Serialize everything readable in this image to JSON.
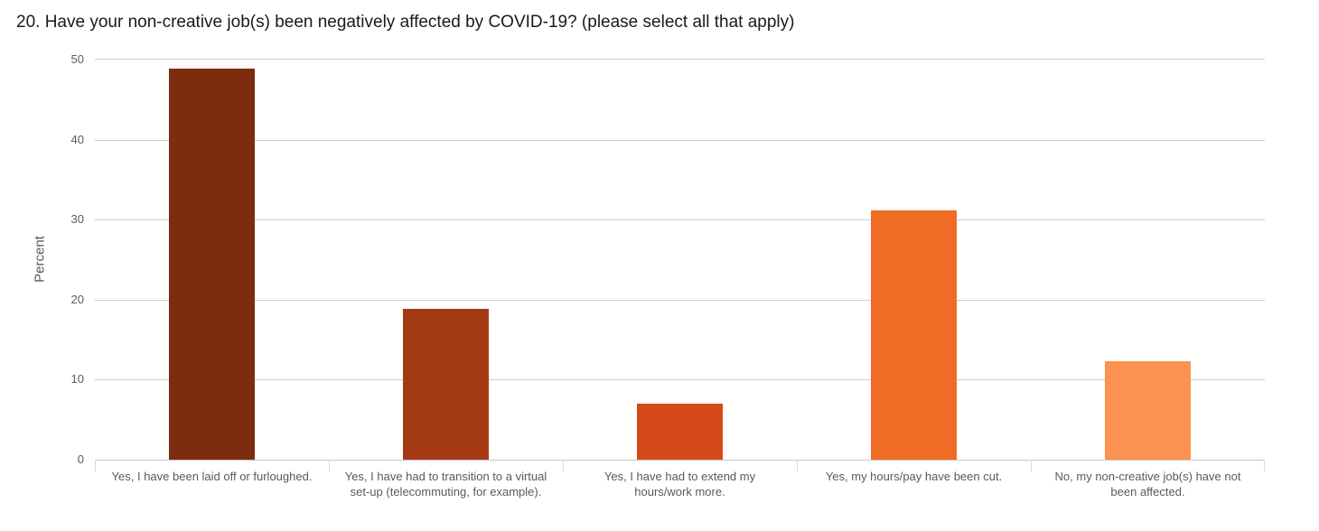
{
  "page": {
    "title": "20. Have your non-creative job(s) been negatively affected by COVID-19? (please select all that apply)"
  },
  "chart_data": {
    "type": "bar",
    "title": "20. Have your non-creative job(s) been negatively affected by COVID-19? (please select all that apply)",
    "categories": [
      "Yes, I have been laid off or furloughed.",
      "Yes, I have had to transition to a virtual set-up (telecommuting, for example).",
      "Yes, I have had to extend my hours/work more.",
      "Yes, my hours/pay have been cut.",
      "No, my non-creative job(s) have not been affected."
    ],
    "values": [
      48.9,
      18.9,
      7.0,
      31.1,
      12.3
    ],
    "bar_colors": [
      "#7D2C10",
      "#A43A14",
      "#D44A18",
      "#F06C26",
      "#FA9350"
    ],
    "xlabel": "",
    "ylabel": "Percent",
    "ylim": [
      0,
      50
    ],
    "yticks": [
      0,
      10,
      20,
      30,
      40,
      50
    ],
    "grid": true,
    "legend": false,
    "colors": {
      "background": "#ffffff",
      "title_text": "#1a1a1a",
      "axis_text": "#5a5a5a",
      "gridline": "#cccccc",
      "axis_line": "#c6c6c6",
      "boundary_tick": "#d9d9d9"
    }
  }
}
